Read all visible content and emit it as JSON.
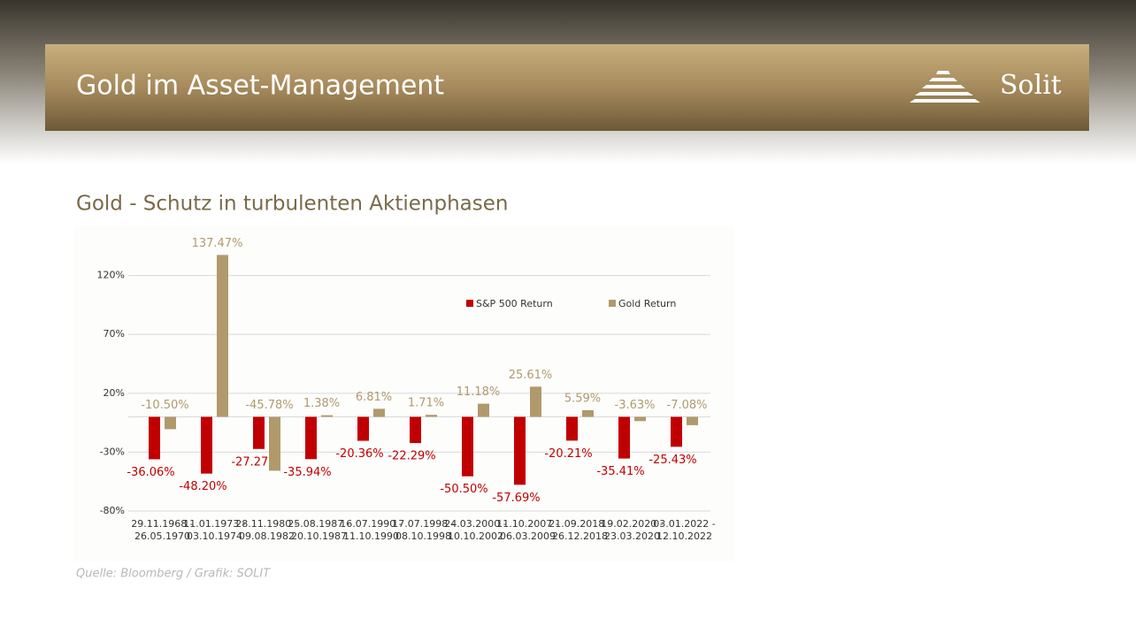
{
  "header": {
    "title": "Gold im Asset-Management",
    "logo": "Solit"
  },
  "chart_data": {
    "type": "bar",
    "title": "Gold - Schutz in turbulenten Aktienphasen",
    "source": "Quelle: Bloomberg / Grafik: SOLIT",
    "categories": [
      [
        "29.11.1968 -",
        "26.05.1970"
      ],
      [
        "11.01.1973 -",
        "03.10.1974"
      ],
      [
        "28.11.1980 -",
        "09.08.1982"
      ],
      [
        "25.08.1987 -",
        "20.10.1987"
      ],
      [
        "16.07.1990 -",
        "11.10.1990"
      ],
      [
        "17.07.1998 -",
        "08.10.1998"
      ],
      [
        "24.03.2000 -",
        "10.10.2002"
      ],
      [
        "11.10.2007 -",
        "06.03.2009"
      ],
      [
        "21.09.2018 -",
        "26.12.2018"
      ],
      [
        "19.02.2020 -",
        "23.03.2020"
      ],
      [
        "03.01.2022 -",
        "12.10.2022"
      ]
    ],
    "series": [
      {
        "name": "S&P 500 Return",
        "color": "#c00000",
        "values": [
          -36.06,
          -48.2,
          -27.27,
          -35.94,
          -20.36,
          -22.29,
          -50.5,
          -57.69,
          -20.21,
          -35.41,
          -25.43
        ],
        "value_labels": [
          "-36.06%",
          "-48.20%",
          "-27.27%",
          "-35.94%",
          "-20.36%",
          "-22.29%",
          "-50.50%",
          "-57.69%",
          "-20.21%",
          "-35.41%",
          "-25.43%"
        ]
      },
      {
        "name": "Gold Return",
        "color": "#b09a6c",
        "values": [
          -10.5,
          137.47,
          -45.78,
          1.38,
          6.81,
          1.71,
          11.18,
          25.61,
          5.59,
          -3.63,
          -7.08
        ],
        "value_labels": [
          "-10.50%",
          "137.47%",
          "-45.78%",
          "1.38%",
          "6.81%",
          "1.71%",
          "11.18%",
          "25.61%",
          "5.59%",
          "-3.63%",
          "-7.08%"
        ]
      }
    ],
    "ylim": [
      -80,
      140
    ],
    "yticks": [
      {
        "value": 120,
        "label": "120%"
      },
      {
        "value": 70,
        "label": "70%"
      },
      {
        "value": 20,
        "label": "20%"
      },
      {
        "value": -30,
        "label": "-30%"
      },
      {
        "value": -80,
        "label": "-80%"
      }
    ],
    "grid": true,
    "legend": "upper right"
  }
}
